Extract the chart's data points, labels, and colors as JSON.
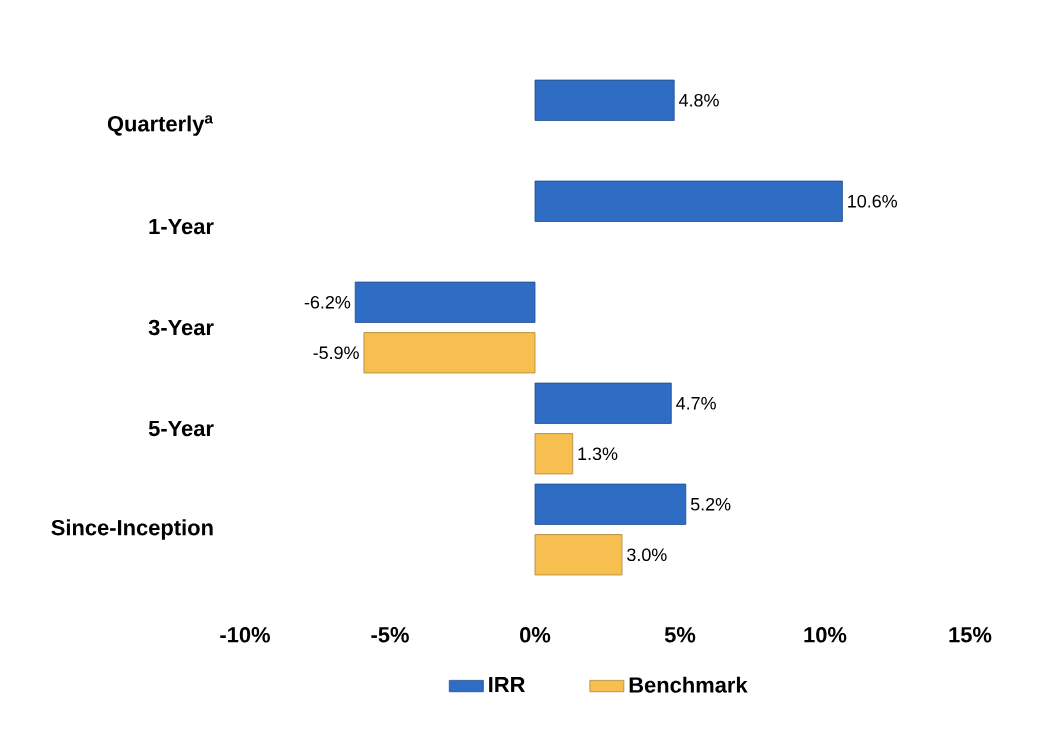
{
  "chart_data": {
    "type": "bar",
    "orientation": "horizontal",
    "categories": [
      "Quarterly$^{a}$",
      "1-Year",
      "3-Year",
      "5-Year",
      "Since-Inception"
    ],
    "series": [
      {
        "name": "IRR",
        "color": "#2f6cc4",
        "values": [
          4.8,
          10.6,
          -6.2,
          4.7,
          5.2
        ],
        "value_labels": [
          "4.8%",
          "10.6%",
          "-6.2%",
          "4.7%",
          "5.2%"
        ]
      },
      {
        "name": "Benchmark",
        "color": "#f6bf4f",
        "values": [
          null,
          null,
          -5.9,
          1.3,
          3.0
        ],
        "value_labels": [
          null,
          null,
          "-5.9%",
          "1.3%",
          "3.0%"
        ]
      }
    ],
    "xlim": [
      -10,
      15
    ],
    "xticks": [
      {
        "value": -10,
        "label": "-10%"
      },
      {
        "value": -5,
        "label": "-5%"
      },
      {
        "value": 0,
        "label": "0%"
      },
      {
        "value": 5,
        "label": "5%"
      },
      {
        "value": 10,
        "label": "10%"
      },
      {
        "value": 15,
        "label": "15%"
      }
    ],
    "grid": false,
    "legend": "bottom"
  }
}
